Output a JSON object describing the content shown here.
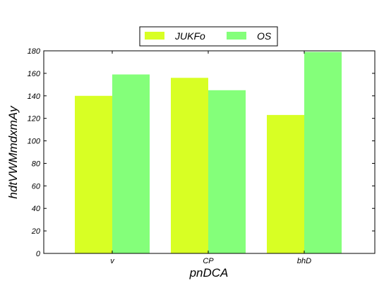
{
  "chart_data": {
    "type": "bar",
    "categories": [
      "v",
      "CP",
      "bhD"
    ],
    "series": [
      {
        "name": "JUKFo",
        "values": [
          140,
          156,
          123
        ],
        "color": "#d8ff24"
      },
      {
        "name": "OS",
        "values": [
          159,
          145,
          179
        ],
        "color": "#84ff7a"
      }
    ],
    "xlabel": "pnDCA",
    "ylabel": "hdtVWMmdxmAy",
    "ylim": [
      0,
      180
    ],
    "yticks": [
      0,
      20,
      40,
      60,
      80,
      100,
      120,
      140,
      160,
      180
    ],
    "grid": false,
    "legend_position": "top-center"
  }
}
